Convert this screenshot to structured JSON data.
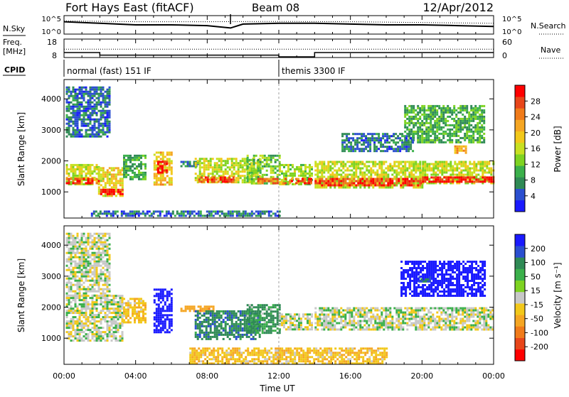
{
  "header": {
    "title": "Fort Hays East (fitACF)",
    "beam": "Beam 08",
    "date": "12/Apr/2012"
  },
  "labels": {
    "nsky": "N.Sky",
    "nsearch": "N.Search",
    "freq_line1": "Freq.",
    "freq_line2": "[MHz]",
    "nave": "Nave",
    "cpid": "CPID",
    "slant_range": "Slant Range [km]",
    "time": "Time UT",
    "power": "Power [dB]",
    "velocity": "Velocity [m s⁻¹]"
  },
  "cpid_segments": [
    {
      "start_hour": 0,
      "label": "normal (fast) 151 IF"
    },
    {
      "start_hour": 12,
      "label": "themis 3300 IF"
    }
  ],
  "noise_axis": {
    "left_ticks": [
      "10^5",
      "10^0"
    ],
    "right_ticks": [
      "10^5",
      "10^0"
    ]
  },
  "freq_axis": {
    "left_ticks": [
      "18",
      "8"
    ],
    "right_ticks": [
      "60",
      "0"
    ]
  },
  "chart_data": [
    {
      "type": "line",
      "panel": "noise",
      "x_unit": "hour UT",
      "series": [
        {
          "name": "N.Sky",
          "style": "solid",
          "x": [
            0,
            2,
            4,
            6,
            8,
            9.3,
            10,
            12,
            14,
            16,
            18,
            20,
            22,
            24
          ],
          "y": [
            0.7,
            0.6,
            0.5,
            0.5,
            0.45,
            0.3,
            0.55,
            0.6,
            0.6,
            0.55,
            0.5,
            0.5,
            0.45,
            0.4
          ]
        },
        {
          "name": "N.Search",
          "style": "dotted",
          "x": [
            0,
            4,
            8,
            12,
            16,
            20,
            24
          ],
          "y": [
            0.75,
            0.7,
            0.7,
            0.72,
            0.7,
            0.65,
            0.6
          ]
        }
      ]
    },
    {
      "type": "line",
      "panel": "frequency",
      "x_unit": "hour UT",
      "series": [
        {
          "name": "Freq. [MHz]",
          "style": "solid",
          "step": true,
          "x": [
            0,
            2.0,
            12.0,
            14.0,
            24
          ],
          "y": [
            10.5,
            9.0,
            8.0,
            10.5,
            10.5
          ]
        },
        {
          "name": "Nave",
          "style": "dotted",
          "x": [
            0,
            24
          ],
          "y": [
            27,
            27
          ]
        }
      ],
      "ylim": [
        8,
        18
      ],
      "y2lim": [
        0,
        60
      ]
    },
    {
      "type": "heatmap",
      "panel": "power",
      "xlabel": "",
      "ylabel": "Slant Range [km]",
      "xlim": [
        0,
        24
      ],
      "ylim": [
        180,
        4600
      ],
      "yticks": [
        1000,
        2000,
        3000,
        4000
      ],
      "colorbar": {
        "label": "Power [dB]",
        "ticks": [
          4,
          8,
          12,
          16,
          20,
          24,
          28
        ],
        "range": [
          0,
          32
        ],
        "colors": [
          "#1a1aff",
          "#2b4fd0",
          "#2f8a55",
          "#3bb04b",
          "#7ed321",
          "#c8e021",
          "#f2c81a",
          "#f5a623",
          "#f07b1a",
          "#e8461a",
          "#ff0000"
        ]
      },
      "regions": [
        {
          "x": [
            0.1,
            1.9
          ],
          "y": [
            1250,
            1900
          ],
          "level": 16
        },
        {
          "x": [
            0.1,
            1.9
          ],
          "y": [
            1300,
            1450
          ],
          "level": 28
        },
        {
          "x": [
            1.9,
            3.3
          ],
          "y": [
            900,
            1800
          ],
          "level": 18
        },
        {
          "x": [
            1.9,
            3.3
          ],
          "y": [
            950,
            1100
          ],
          "level": 30
        },
        {
          "x": [
            3.3,
            4.6
          ],
          "y": [
            1400,
            2200
          ],
          "level": 10
        },
        {
          "x": [
            5.0,
            6.0
          ],
          "y": [
            1250,
            2300
          ],
          "level": 20
        },
        {
          "x": [
            5.2,
            5.7
          ],
          "y": [
            1600,
            2000
          ],
          "level": 30
        },
        {
          "x": [
            6.5,
            7.5
          ],
          "y": [
            1800,
            2000
          ],
          "level": 8
        },
        {
          "x": [
            7.3,
            10.9
          ],
          "y": [
            1300,
            2100
          ],
          "level": 16
        },
        {
          "x": [
            7.5,
            9.5
          ],
          "y": [
            1300,
            1500
          ],
          "level": 28
        },
        {
          "x": [
            10.2,
            12.0
          ],
          "y": [
            1300,
            2200
          ],
          "level": 12
        },
        {
          "x": [
            10.8,
            11.9
          ],
          "y": [
            1300,
            1450
          ],
          "level": 24
        },
        {
          "x": [
            12.0,
            13.8
          ],
          "y": [
            1250,
            1900
          ],
          "level": 14
        },
        {
          "x": [
            12.2,
            13.8
          ],
          "y": [
            1300,
            1450
          ],
          "level": 26
        },
        {
          "x": [
            14.0,
            20.0
          ],
          "y": [
            1150,
            2000
          ],
          "level": 16
        },
        {
          "x": [
            14.0,
            20.0
          ],
          "y": [
            1200,
            1450
          ],
          "level": 28
        },
        {
          "x": [
            20.0,
            24.0
          ],
          "y": [
            1300,
            2000
          ],
          "level": 16
        },
        {
          "x": [
            20.0,
            24.0
          ],
          "y": [
            1350,
            1500
          ],
          "level": 30
        },
        {
          "x": [
            19.0,
            23.5
          ],
          "y": [
            2600,
            3800
          ],
          "level": 10
        },
        {
          "x": [
            21.8,
            22.4
          ],
          "y": [
            2250,
            2500
          ],
          "level": 22
        },
        {
          "x": [
            0.1,
            2.5
          ],
          "y": [
            2800,
            4400
          ],
          "level": 6
        },
        {
          "x": [
            15.5,
            19.5
          ],
          "y": [
            2300,
            2900
          ],
          "level": 6
        },
        {
          "x": [
            1.5,
            12.0
          ],
          "y": [
            200,
            400
          ],
          "level": 6
        }
      ]
    },
    {
      "type": "heatmap",
      "panel": "velocity",
      "xlabel": "Time UT",
      "ylabel": "Slant Range [km]",
      "xlim": [
        0,
        24
      ],
      "ylim": [
        180,
        4600
      ],
      "xticks": [
        "00:00",
        "04:00",
        "08:00",
        "12:00",
        "16:00",
        "20:00",
        "00:00"
      ],
      "yticks": [
        1000,
        2000,
        3000,
        4000
      ],
      "colorbar": {
        "label": "Velocity [m s⁻¹]",
        "ticks": [
          200,
          100,
          50,
          15,
          -15,
          -50,
          -100,
          -200
        ],
        "colors": [
          "#1a1aff",
          "#2b4fd0",
          "#2f8a55",
          "#3bb04b",
          "#7ed321",
          "#c8c8c8",
          "#f2c81a",
          "#f5a623",
          "#f07b1a",
          "#e8461a",
          "#ff0000"
        ]
      },
      "regions": [
        {
          "x": [
            0.1,
            3.3
          ],
          "y": [
            900,
            2400
          ],
          "velocity": 0
        },
        {
          "x": [
            0.1,
            2.5
          ],
          "y": [
            2400,
            4400
          ],
          "velocity": 0
        },
        {
          "x": [
            3.3,
            4.6
          ],
          "y": [
            1500,
            2300
          ],
          "velocity": -40
        },
        {
          "x": [
            5.0,
            6.0
          ],
          "y": [
            1200,
            2600
          ],
          "velocity": 220
        },
        {
          "x": [
            6.5,
            8.3
          ],
          "y": [
            1850,
            2050
          ],
          "velocity": -80
        },
        {
          "x": [
            7.3,
            10.9
          ],
          "y": [
            1000,
            1900
          ],
          "velocity": 60
        },
        {
          "x": [
            10.2,
            12.0
          ],
          "y": [
            1200,
            2100
          ],
          "velocity": 40
        },
        {
          "x": [
            12.0,
            13.8
          ],
          "y": [
            1300,
            1800
          ],
          "velocity": 0
        },
        {
          "x": [
            14.0,
            24.0
          ],
          "y": [
            1300,
            2000
          ],
          "velocity": 0
        },
        {
          "x": [
            18.8,
            23.5
          ],
          "y": [
            2400,
            3500
          ],
          "velocity": 220
        },
        {
          "x": [
            19.8,
            20.4
          ],
          "y": [
            2800,
            3000
          ],
          "velocity": 80
        },
        {
          "x": [
            7.0,
            18.0
          ],
          "y": [
            200,
            700
          ],
          "velocity": -40
        }
      ]
    }
  ]
}
